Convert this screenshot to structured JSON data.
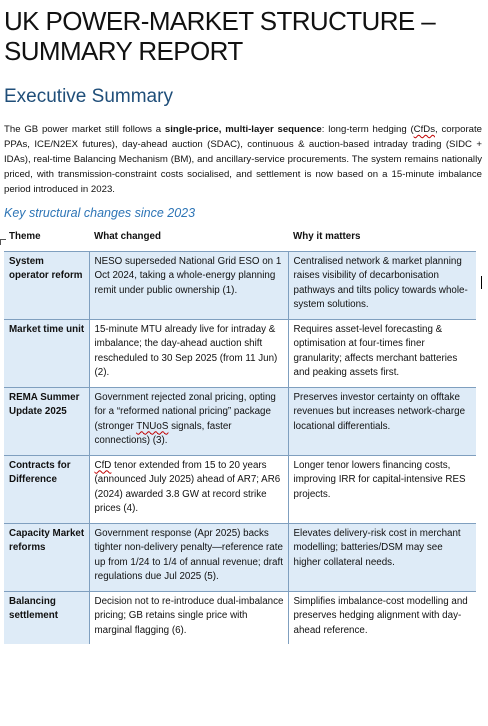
{
  "title_lines": [
    "UK POWER-MARKET STRUCTURE –",
    "SUMMARY REPORT"
  ],
  "section_heading": "Executive Summary",
  "summary": {
    "part1": "The GB power market still follows a ",
    "bold": "single-price, multi-layer sequence",
    "part2": ": long-term hedging (",
    "cfds": "CfDs",
    "part3": ", corporate PPAs, ICE/N2EX futures), day-ahead auction (SDAC), continuous & auction-based intraday trading (SIDC + IDAs), real-time Balancing Mechanism (BM), and ancillary-service procurements. The system remains nationally priced, with transmission-constraint costs socialised, and settlement is now based on a 15-minute imbalance period introduced in 2023."
  },
  "table_heading": "Key structural changes since 2023",
  "columns": [
    "Theme",
    "What changed",
    "Why it matters"
  ],
  "rows": [
    {
      "theme": "System operator reform",
      "changed": "NESO superseded National Grid ESO on 1 Oct 2024, taking a whole-energy planning remit under public ownership (1).",
      "matters": "Centralised network & market planning raises visibility of decarbonisation pathways and tilts policy towards whole-system solutions."
    },
    {
      "theme": "Market time unit",
      "changed": "15-minute MTU already live for intraday & imbalance; the day-ahead auction shift rescheduled to 30 Sep 2025 (from 11 Jun) (2).",
      "matters": "Requires asset-level forecasting & optimisation at four-times finer granularity; affects merchant batteries and peaking assets first."
    },
    {
      "theme": "REMA Summer Update 2025",
      "changed_pre": "Government rejected zonal pricing, opting for a “reformed national pricing” package (stronger ",
      "changed_sq": "TNUoS",
      "changed_post": " signals, faster connections) (3).",
      "matters": "Preserves investor certainty on offtake revenues but increases network-charge locational differentials."
    },
    {
      "theme": "Contracts for Difference",
      "changed_sq": "CfD",
      "changed_post": " tenor extended from 15 to 20 years (announced July 2025) ahead of AR7; AR6 (2024) awarded 3.8 GW at record strike prices (4).",
      "matters": "Longer tenor lowers financing costs, improving IRR for capital-intensive RES projects."
    },
    {
      "theme": "Capacity Market reforms",
      "changed": "Government response (Apr 2025) backs tighter non-delivery penalty—reference rate up from 1/24 to 1/4 of annual revenue; draft regulations due Jul 2025 (5).",
      "matters": "Elevates delivery-risk cost in merchant modelling; batteries/DSM may see higher collateral needs."
    },
    {
      "theme": "Balancing settlement",
      "changed": "Decision not to re-introduce dual-imbalance pricing; GB retains single price with marginal flagging (6).",
      "matters": "Simplifies imbalance-cost modelling and preserves hedging alignment with day-ahead reference."
    }
  ]
}
